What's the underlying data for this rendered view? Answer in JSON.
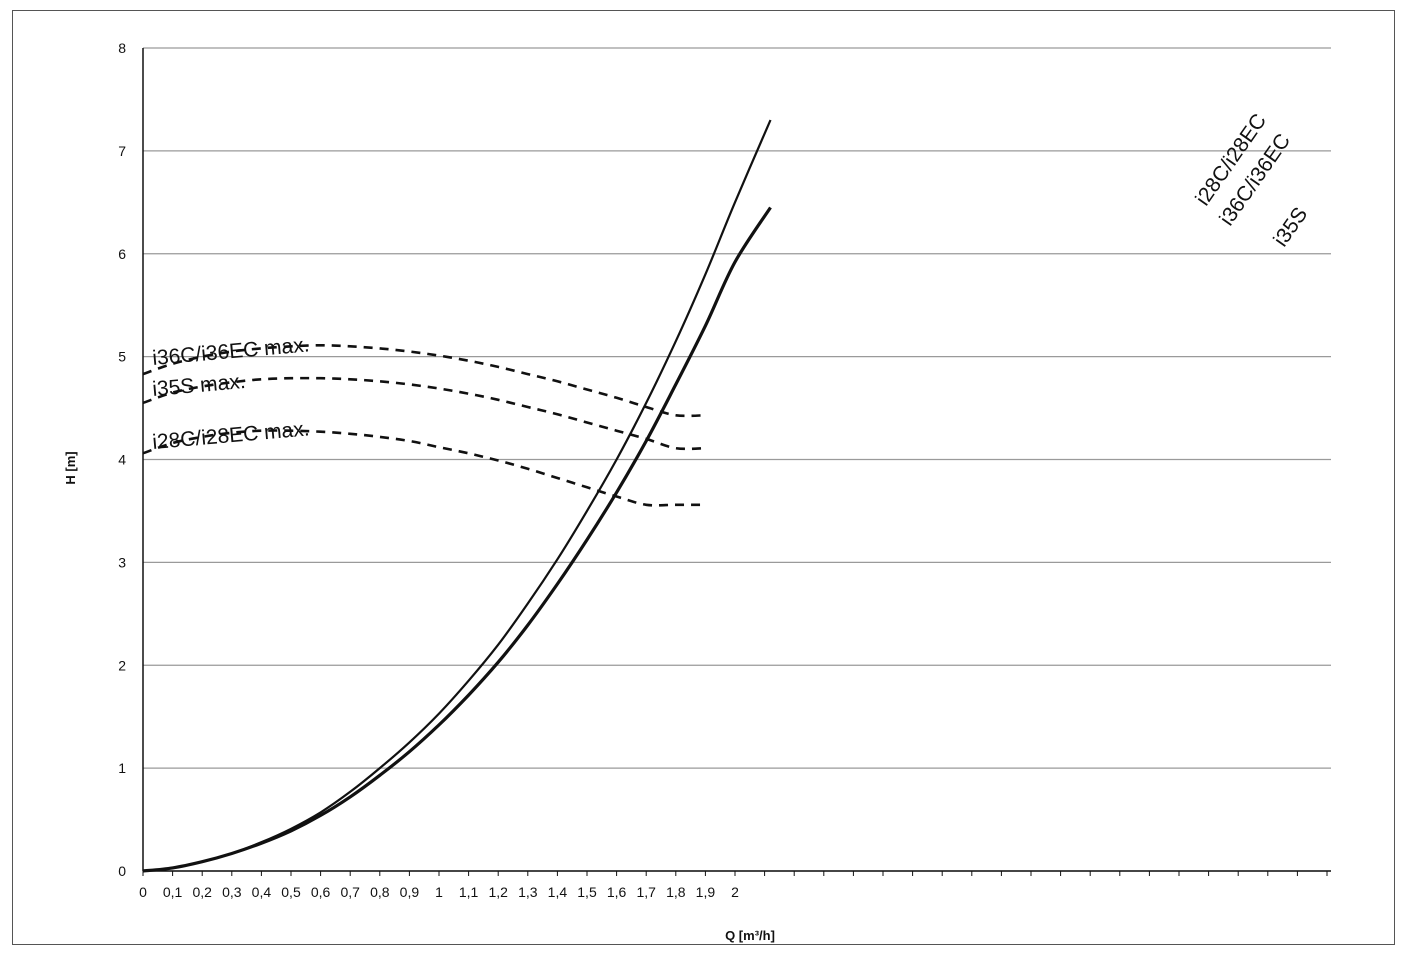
{
  "chart_data": {
    "type": "line",
    "title": "",
    "xlabel": "Q [m³/h]",
    "ylabel": "H [m]",
    "ylim": [
      0,
      8
    ],
    "y_ticks": [
      "0",
      "1",
      "2",
      "3",
      "4",
      "5",
      "6",
      "7",
      "8"
    ],
    "x_ticks": [
      {
        "value": 0,
        "label": "0"
      },
      {
        "value": 0.1,
        "label": "0,1"
      },
      {
        "value": 0.2,
        "label": "0,2"
      },
      {
        "value": 0.3,
        "label": "0,3"
      },
      {
        "value": 0.4,
        "label": "0,4"
      },
      {
        "value": 0.5,
        "label": "0,5"
      },
      {
        "value": 0.6,
        "label": "0,6"
      },
      {
        "value": 0.7,
        "label": "0,7"
      },
      {
        "value": 0.8,
        "label": "0,8"
      },
      {
        "value": 0.9,
        "label": "0,9"
      },
      {
        "value": 1,
        "label": "1"
      },
      {
        "value": 1.1,
        "label": "1,1"
      },
      {
        "value": 1.2,
        "label": "1,2"
      },
      {
        "value": 1.3,
        "label": "1,3"
      },
      {
        "value": 1.4,
        "label": "1,4"
      },
      {
        "value": 1.5,
        "label": "1,5"
      },
      {
        "value": 1.6,
        "label": "1,6"
      },
      {
        "value": 1.7,
        "label": "1,7"
      },
      {
        "value": 1.8,
        "label": "1,8"
      },
      {
        "value": 1.9,
        "label": "1,9"
      },
      {
        "value": 2,
        "label": "2"
      }
    ],
    "grid": "horizontal",
    "series": [
      {
        "name": "i28C/i28EC\ni36C/i36EC",
        "style": "solid",
        "points": [
          [
            0,
            0
          ],
          [
            0.1,
            0.03
          ],
          [
            0.2,
            0.09
          ],
          [
            0.3,
            0.17
          ],
          [
            0.4,
            0.28
          ],
          [
            0.5,
            0.41
          ],
          [
            0.6,
            0.57
          ],
          [
            0.7,
            0.77
          ],
          [
            0.8,
            1.0
          ],
          [
            0.9,
            1.25
          ],
          [
            1.0,
            1.53
          ],
          [
            1.1,
            1.85
          ],
          [
            1.2,
            2.2
          ],
          [
            1.3,
            2.6
          ],
          [
            1.4,
            3.03
          ],
          [
            1.5,
            3.5
          ],
          [
            1.6,
            4.0
          ],
          [
            1.7,
            4.55
          ],
          [
            1.8,
            5.15
          ],
          [
            1.9,
            5.8
          ],
          [
            2.0,
            6.5
          ],
          [
            2.12,
            7.3
          ]
        ]
      },
      {
        "name": "i35S",
        "style": "solid",
        "points": [
          [
            0,
            0
          ],
          [
            0.1,
            0.03
          ],
          [
            0.2,
            0.09
          ],
          [
            0.3,
            0.17
          ],
          [
            0.4,
            0.27
          ],
          [
            0.5,
            0.39
          ],
          [
            0.6,
            0.54
          ],
          [
            0.7,
            0.72
          ],
          [
            0.8,
            0.93
          ],
          [
            0.9,
            1.16
          ],
          [
            1.0,
            1.42
          ],
          [
            1.1,
            1.71
          ],
          [
            1.2,
            2.03
          ],
          [
            1.3,
            2.39
          ],
          [
            1.4,
            2.79
          ],
          [
            1.5,
            3.22
          ],
          [
            1.6,
            3.68
          ],
          [
            1.7,
            4.18
          ],
          [
            1.8,
            4.73
          ],
          [
            1.9,
            5.3
          ],
          [
            2.0,
            5.92
          ],
          [
            2.12,
            6.45
          ]
        ]
      },
      {
        "name": "i36C/i36EC max.",
        "style": "dashed",
        "points": [
          [
            0,
            4.83
          ],
          [
            0.1,
            4.93
          ],
          [
            0.2,
            5.0
          ],
          [
            0.3,
            5.05
          ],
          [
            0.4,
            5.08
          ],
          [
            0.5,
            5.1
          ],
          [
            0.6,
            5.11
          ],
          [
            0.7,
            5.1
          ],
          [
            0.8,
            5.08
          ],
          [
            0.9,
            5.05
          ],
          [
            1.0,
            5.01
          ],
          [
            1.1,
            4.96
          ],
          [
            1.2,
            4.9
          ],
          [
            1.3,
            4.83
          ],
          [
            1.4,
            4.76
          ],
          [
            1.5,
            4.68
          ],
          [
            1.6,
            4.6
          ],
          [
            1.7,
            4.51
          ],
          [
            1.8,
            4.43
          ],
          [
            1.9,
            4.43
          ]
        ]
      },
      {
        "name": "i35S max.",
        "style": "dashed",
        "points": [
          [
            0,
            4.55
          ],
          [
            0.1,
            4.65
          ],
          [
            0.2,
            4.71
          ],
          [
            0.3,
            4.75
          ],
          [
            0.4,
            4.78
          ],
          [
            0.5,
            4.79
          ],
          [
            0.6,
            4.79
          ],
          [
            0.7,
            4.78
          ],
          [
            0.8,
            4.76
          ],
          [
            0.9,
            4.73
          ],
          [
            1.0,
            4.69
          ],
          [
            1.1,
            4.64
          ],
          [
            1.2,
            4.58
          ],
          [
            1.3,
            4.51
          ],
          [
            1.4,
            4.44
          ],
          [
            1.5,
            4.36
          ],
          [
            1.6,
            4.28
          ],
          [
            1.7,
            4.2
          ],
          [
            1.8,
            4.11
          ],
          [
            1.9,
            4.11
          ]
        ]
      },
      {
        "name": "i28C/i28EC max.",
        "style": "dashed",
        "points": [
          [
            0,
            4.06
          ],
          [
            0.1,
            4.16
          ],
          [
            0.2,
            4.22
          ],
          [
            0.3,
            4.26
          ],
          [
            0.4,
            4.28
          ],
          [
            0.5,
            4.28
          ],
          [
            0.6,
            4.27
          ],
          [
            0.7,
            4.25
          ],
          [
            0.8,
            4.22
          ],
          [
            0.9,
            4.18
          ],
          [
            1.0,
            4.12
          ],
          [
            1.1,
            4.06
          ],
          [
            1.2,
            3.99
          ],
          [
            1.3,
            3.91
          ],
          [
            1.4,
            3.82
          ],
          [
            1.5,
            3.73
          ],
          [
            1.6,
            3.64
          ],
          [
            1.7,
            3.56
          ],
          [
            1.8,
            3.56
          ],
          [
            1.9,
            3.56
          ]
        ]
      }
    ],
    "labels": {
      "solid_upper_line1": "i28C/i28EC",
      "solid_upper_line2": "i36C/i36EC",
      "solid_lower": "i35S",
      "dashed_top": "i36C/i36EC max.",
      "dashed_mid": "i35S max.",
      "dashed_bottom": "i28C/i28EC max."
    }
  }
}
